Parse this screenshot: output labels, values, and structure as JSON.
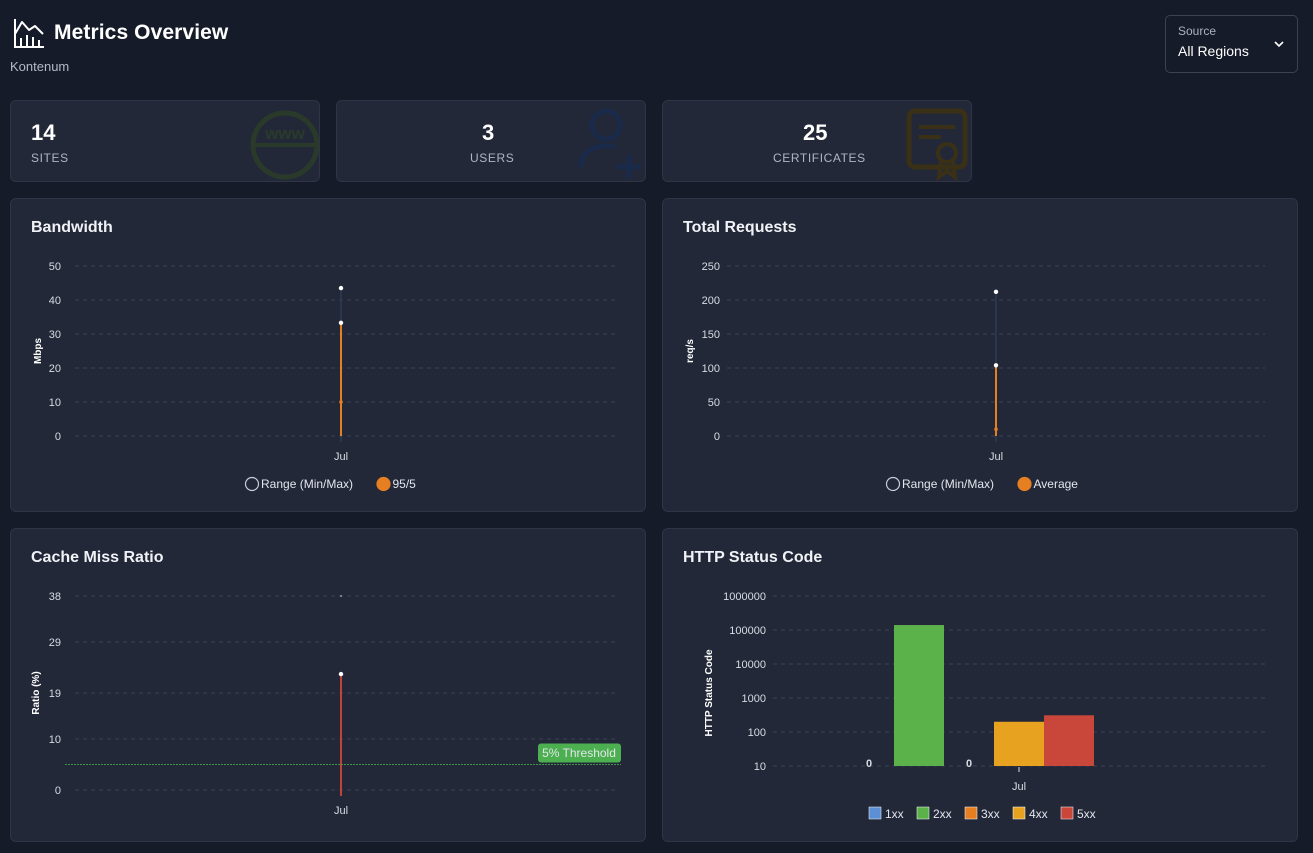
{
  "header": {
    "title": "Metrics Overview",
    "subtitle": "Kontenum"
  },
  "source": {
    "label": "Source",
    "value": "All Regions"
  },
  "stats": [
    {
      "value": "14",
      "label": "SITES",
      "icon": "www-globe-icon",
      "color": "#3d6a3a"
    },
    {
      "value": "3",
      "label": "USERS",
      "icon": "user-add-icon",
      "color": "#253e6e"
    },
    {
      "value": "25",
      "label": "CERTIFICATES",
      "icon": "certificate-icon",
      "color": "#6e5a22"
    }
  ],
  "charts": {
    "bandwidth": {
      "title": "Bandwidth",
      "chart_data": {
        "type": "line",
        "ylabel": "Mbps",
        "ylim": [
          0,
          50
        ],
        "yticks": [
          "50",
          "40",
          "30",
          "20",
          "10",
          "0"
        ],
        "categories": [
          "Jul"
        ],
        "series": [
          {
            "name": "Range (Min/Max)",
            "min": 0,
            "max": 43.5,
            "color": "#1e2c44"
          },
          {
            "name": "95/5",
            "low": 10,
            "high": 33.3,
            "color": "#e67e22"
          }
        ]
      }
    },
    "requests": {
      "title": "Total Requests",
      "chart_data": {
        "type": "line",
        "ylabel": "req/s",
        "ylim": [
          0,
          250
        ],
        "yticks": [
          "250",
          "200",
          "150",
          "100",
          "50",
          "0"
        ],
        "categories": [
          "Jul"
        ],
        "series": [
          {
            "name": "Range (Min/Max)",
            "min": 0,
            "max": 212,
            "color": "#1e2c44"
          },
          {
            "name": "Average",
            "low": 10,
            "high": 104,
            "color": "#e67e22"
          }
        ]
      }
    },
    "cache": {
      "title": "Cache Miss Ratio",
      "chart_data": {
        "type": "line",
        "ylabel": "Ratio (%)",
        "ylim": [
          0,
          38
        ],
        "yticks": [
          "38",
          "29",
          "19",
          "10",
          "0"
        ],
        "categories": [
          "Jul"
        ],
        "series": [
          {
            "name": "Cache Miss",
            "low": 0,
            "high": 22.7,
            "color": "#c0433a"
          }
        ],
        "threshold": {
          "label": "5% Threshold",
          "value": 5,
          "color": "#4caf50"
        }
      }
    },
    "http": {
      "title": "HTTP Status Code",
      "chart_data": {
        "type": "bar",
        "ylabel": "HTTP Status Code",
        "scale": "log",
        "yticks": [
          "1000000",
          "100000",
          "10000",
          "1000",
          "100",
          "10"
        ],
        "categories": [
          "Jul"
        ],
        "series": [
          {
            "name": "1xx",
            "values": [
              0
            ],
            "color": "#5b8fd6",
            "label": "0"
          },
          {
            "name": "2xx",
            "values": [
              140000
            ],
            "color": "#5bb14a",
            "label": ""
          },
          {
            "name": "3xx",
            "values": [
              0
            ],
            "color": "#e67e22",
            "label": "0"
          },
          {
            "name": "4xx",
            "values": [
              200
            ],
            "color": "#e7a21f",
            "label": ""
          },
          {
            "name": "5xx",
            "values": [
              310
            ],
            "color": "#c9473a",
            "label": ""
          }
        ]
      }
    }
  }
}
